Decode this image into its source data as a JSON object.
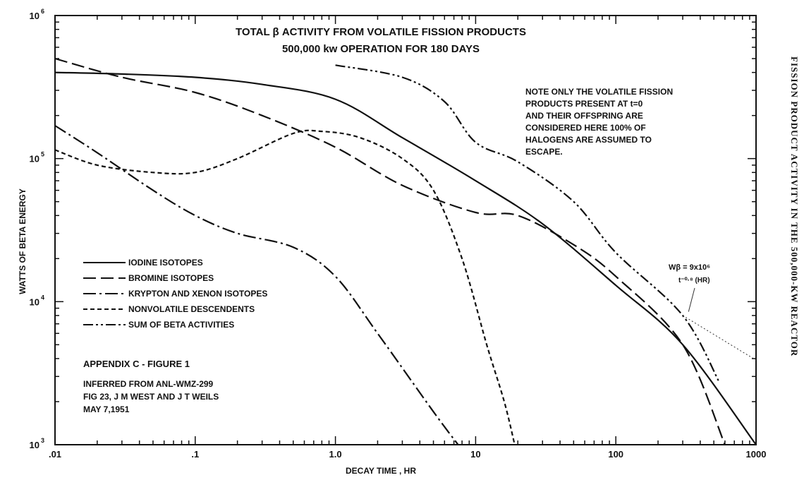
{
  "side_title": "FISSION PRODUCT ACTIVITY IN THE 500,000-KW REACTOR",
  "chart_data": {
    "type": "line",
    "title": "TOTAL β ACTIVITY FROM VOLATILE FISSION PRODUCTS",
    "subtitle": "500,000 kw OPERATION FOR 180 DAYS",
    "xlabel": "DECAY TIME , HR",
    "ylabel": "WATTS OF BETA ENERGY",
    "xscale": "log",
    "yscale": "log",
    "xlim": [
      0.01,
      1000
    ],
    "ylim": [
      1000,
      1000000
    ],
    "x_ticks": [
      ".01",
      ".1",
      "1.0",
      "10",
      "100",
      "1000"
    ],
    "y_ticks": [
      {
        "base": "10",
        "exp": "3"
      },
      {
        "base": "10",
        "exp": "4"
      },
      {
        "base": "10",
        "exp": "5"
      },
      {
        "base": "10",
        "exp": "6"
      }
    ],
    "grid": false,
    "legend_position": "left",
    "series": [
      {
        "name": "IODINE ISOTOPES",
        "dash": "solid",
        "x": [
          0.01,
          0.03,
          0.1,
          0.3,
          1,
          3,
          10,
          30,
          100,
          300,
          1000
        ],
        "y": [
          400000,
          390000,
          370000,
          330000,
          260000,
          140000,
          70000,
          35000,
          13000,
          5000,
          1000
        ]
      },
      {
        "name": "BROMINE ISOTOPES",
        "dash": "longdash",
        "x": [
          0.01,
          0.03,
          0.1,
          0.3,
          1,
          3,
          10,
          20,
          50,
          100,
          300,
          600
        ],
        "y": [
          500000,
          370000,
          290000,
          200000,
          120000,
          65000,
          42000,
          40000,
          25000,
          15000,
          5000,
          1000
        ]
      },
      {
        "name": "KRYPTON AND XENON ISOTOPES",
        "dash": "dashdot",
        "x": [
          0.01,
          0.02,
          0.05,
          0.1,
          0.2,
          0.5,
          1,
          2,
          5,
          7.5
        ],
        "y": [
          170000,
          110000,
          60000,
          40000,
          30000,
          24000,
          15000,
          6000,
          1700,
          1000
        ]
      },
      {
        "name": "NONVOLATILE DESCENDENTS",
        "dash": "shortdash",
        "x": [
          0.01,
          0.02,
          0.05,
          0.1,
          0.2,
          0.5,
          0.8,
          1.5,
          3,
          5,
          8,
          12,
          16,
          19
        ],
        "y": [
          115000,
          90000,
          80000,
          80000,
          100000,
          150000,
          155000,
          140000,
          100000,
          60000,
          20000,
          5000,
          2000,
          1000
        ]
      },
      {
        "name": "SUM OF BETA ACTIVITIES",
        "dash": "dashdotdot",
        "x": [
          1,
          3,
          6,
          10,
          20,
          50,
          100,
          300,
          550
        ],
        "y": [
          450000,
          370000,
          250000,
          130000,
          95000,
          50000,
          22000,
          8000,
          2700
        ]
      }
    ],
    "extrapolation": {
      "x": [
        300,
        1000
      ],
      "y": [
        8000,
        3900
      ]
    },
    "formula_label": "Wβ = 9x10⁶",
    "formula_sublabel": "t⁻⁰·⁸ (HR)",
    "note_lines": [
      "NOTE  ONLY THE VOLATILE FISSION",
      "PRODUCTS PRESENT AT t=0",
      "AND THEIR OFFSPRING ARE",
      "CONSIDERED HERE  100% OF",
      "HALOGENS ARE ASSUMED TO",
      "ESCAPE."
    ],
    "appendix_label": "APPENDIX C - FIGURE 1",
    "source_lines": [
      "INFERRED FROM ANL-WMZ-299",
      "FIG 23, J M WEST AND J T WEILS",
      "MAY 7,1951"
    ]
  }
}
